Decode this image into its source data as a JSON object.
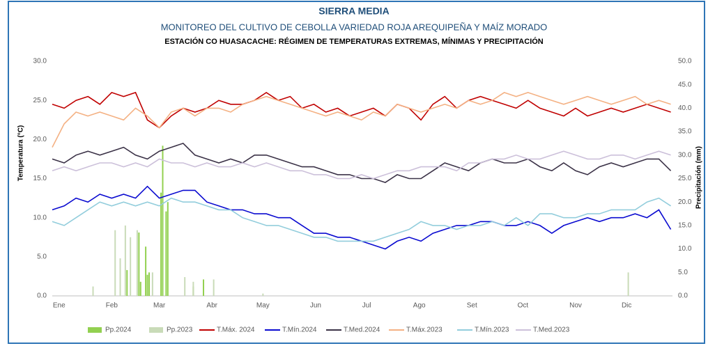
{
  "chart_data": {
    "type": "line",
    "title": "SIERRA MEDIA",
    "subtitle": "MONITOREO DEL CULTIVO DE CEBOLLA VARIEDAD ROJA AREQUIPEÑA Y MAÍZ MORADO",
    "description": "ESTACIÓN CO HUASACACHE: RÉGIMEN DE TEMPERATURAS EXTREMAS, MÍNIMAS Y PRECIPITACIÓN",
    "y_label": "Temperatura (°C)",
    "y2_label": "Precipitación (mm)",
    "xlim": [
      1,
      366
    ],
    "xticks": [
      {
        "value": 5,
        "label": "Ene"
      },
      {
        "value": 36,
        "label": "Feb"
      },
      {
        "value": 64,
        "label": "Mar"
      },
      {
        "value": 95,
        "label": "Abr"
      },
      {
        "value": 125,
        "label": "May"
      },
      {
        "value": 156,
        "label": "Jun"
      },
      {
        "value": 186,
        "label": "Jul"
      },
      {
        "value": 217,
        "label": "Ago"
      },
      {
        "value": 248,
        "label": "Set"
      },
      {
        "value": 278,
        "label": "Oct"
      },
      {
        "value": 309,
        "label": "Nov"
      },
      {
        "value": 339,
        "label": "Dic"
      }
    ],
    "ylim": [
      0,
      30
    ],
    "yticks": [
      {
        "value": 0,
        "label": "0.0"
      },
      {
        "value": 5,
        "label": "5.0"
      },
      {
        "value": 10,
        "label": "10.0"
      },
      {
        "value": 15,
        "label": "15.0"
      },
      {
        "value": 20,
        "label": "20.0"
      },
      {
        "value": 25,
        "label": "25.0"
      },
      {
        "value": 30,
        "label": "30.0"
      }
    ],
    "y2lim": [
      0,
      50
    ],
    "y2ticks": [
      {
        "value": 0,
        "label": "0.0"
      },
      {
        "value": 5,
        "label": "5.0"
      },
      {
        "value": 10,
        "label": "10.0"
      },
      {
        "value": 15,
        "label": "15.0"
      },
      {
        "value": 20,
        "label": "20.0"
      },
      {
        "value": 25,
        "label": "25.0"
      },
      {
        "value": 30,
        "label": "30.0"
      },
      {
        "value": 35,
        "label": "35.0"
      },
      {
        "value": 40,
        "label": "40.0"
      },
      {
        "value": 45,
        "label": "45.0"
      },
      {
        "value": 50,
        "label": "50.0"
      }
    ],
    "legend": "bottom",
    "x": [
      1,
      8,
      15,
      22,
      29,
      36,
      43,
      50,
      57,
      64,
      71,
      78,
      85,
      92,
      99,
      106,
      113,
      120,
      127,
      134,
      141,
      148,
      155,
      162,
      169,
      176,
      183,
      190,
      197,
      204,
      211,
      218,
      225,
      232,
      239,
      246,
      253,
      260,
      267,
      274,
      281,
      288,
      295,
      302,
      309,
      316,
      323,
      330,
      337,
      344,
      351,
      358,
      365
    ],
    "series": [
      {
        "name": "Pp.2024",
        "type": "bar",
        "axis": "y2",
        "color": "#92d050",
        "x": [
          45,
          52,
          53,
          56,
          57,
          58,
          65,
          66,
          68,
          69,
          84,
          90
        ],
        "values": [
          5.5,
          13.5,
          3,
          10.5,
          4.5,
          5,
          22,
          32,
          18,
          20,
          2,
          3.5
        ]
      },
      {
        "name": "Pp.2023",
        "type": "bar",
        "axis": "y2",
        "color": "#c9dbb8",
        "x": [
          25,
          38,
          41,
          44,
          47,
          51,
          60,
          79,
          84,
          96,
          125,
          340
        ],
        "values": [
          2,
          14,
          8,
          15,
          12.5,
          14,
          5,
          4,
          3,
          3.5,
          0.5,
          5
        ]
      },
      {
        "name": "T.Máx. 2024",
        "color": "#c00000",
        "values": [
          24.5,
          24,
          25,
          25.5,
          24.5,
          26,
          25.5,
          26,
          22.5,
          21.5,
          23,
          24,
          23.5,
          24,
          25,
          24.5,
          24.5,
          25,
          26,
          25,
          25.5,
          24,
          24.5,
          23.5,
          24,
          23,
          23.5,
          24,
          23,
          24.5,
          24,
          22.5,
          24.5,
          25.5,
          24,
          25,
          25.5,
          25,
          24.5,
          24,
          25,
          24,
          23.5,
          23,
          24,
          23,
          23.5,
          24,
          23.5,
          24,
          24.5,
          24,
          23.5
        ]
      },
      {
        "name": "T.Mín.2024",
        "color": "#0a0ad0",
        "values": [
          11,
          11.5,
          12.5,
          12,
          13,
          12.5,
          13,
          12.5,
          14,
          12.5,
          13,
          13.5,
          13.5,
          12,
          11.5,
          11,
          11,
          10.5,
          10.5,
          10,
          10,
          9,
          8,
          8,
          7.5,
          7.5,
          7,
          6.5,
          6,
          7,
          7.5,
          7,
          8,
          8.5,
          9,
          9,
          9.5,
          9.5,
          9,
          9,
          9.5,
          9,
          8,
          9,
          9.5,
          10,
          9.5,
          10,
          10,
          10.5,
          10,
          11,
          8.5
        ]
      },
      {
        "name": "T.Med.2024",
        "color": "#3b3247",
        "values": [
          17.5,
          17,
          18,
          18.5,
          18,
          18.5,
          19,
          18,
          17.5,
          18.5,
          19,
          19.5,
          18,
          17.5,
          17,
          17.5,
          17,
          18,
          18,
          17.5,
          17,
          16.5,
          16.5,
          16,
          15.5,
          15.5,
          15,
          15,
          14.5,
          15.5,
          15,
          15,
          16,
          17,
          16.5,
          16,
          17,
          17.5,
          17,
          17,
          17.5,
          16.5,
          16,
          17,
          16,
          15.5,
          16.5,
          17,
          16.5,
          17,
          17.5,
          17.5,
          16
        ]
      },
      {
        "name": "T.Máx.2023",
        "color": "#f4b183",
        "values": [
          19,
          22,
          23.5,
          23,
          23.5,
          23,
          22.5,
          24,
          23,
          21.5,
          23.5,
          24,
          23,
          24,
          24,
          23.5,
          24.5,
          25,
          25.5,
          25,
          24.5,
          24,
          23.5,
          23,
          23.5,
          23,
          22.5,
          23.5,
          23,
          24.5,
          24,
          23.5,
          24,
          24.5,
          24,
          25,
          24.5,
          25,
          26,
          25.5,
          26,
          25.5,
          25,
          24.5,
          25,
          25.5,
          25,
          24.5,
          25,
          25.5,
          24.5,
          25,
          24.5
        ]
      },
      {
        "name": "T.Mín.2023",
        "color": "#92cddc",
        "values": [
          9.5,
          9,
          10,
          11,
          12,
          11.5,
          12,
          11.5,
          12,
          11.5,
          12.5,
          12,
          12,
          11.5,
          11,
          11,
          10,
          9.5,
          9,
          9,
          8.5,
          8,
          7.5,
          7.5,
          7,
          7,
          7,
          7,
          7.5,
          8,
          8.5,
          9.5,
          9,
          9,
          8.5,
          9,
          9,
          9.5,
          9,
          10,
          9,
          10.5,
          10.5,
          10,
          10,
          10.5,
          10.5,
          11,
          11,
          11,
          12,
          12.5,
          11.5
        ]
      },
      {
        "name": "T.Med.2023",
        "color": "#ccc0da",
        "values": [
          16,
          16.5,
          16,
          16.5,
          17,
          17,
          16.5,
          17,
          16.5,
          17.5,
          17,
          17,
          16.5,
          17,
          16.5,
          16.5,
          17,
          16.5,
          17,
          16.5,
          16,
          16,
          15.5,
          15.5,
          15,
          15,
          15.5,
          15,
          15.5,
          16,
          16,
          16.5,
          16.5,
          16.5,
          16,
          17,
          17,
          17.5,
          17.5,
          18,
          17.5,
          17.5,
          18,
          18.5,
          18,
          17.5,
          17.5,
          18,
          18,
          17.5,
          18,
          18.5,
          18
        ]
      }
    ]
  }
}
